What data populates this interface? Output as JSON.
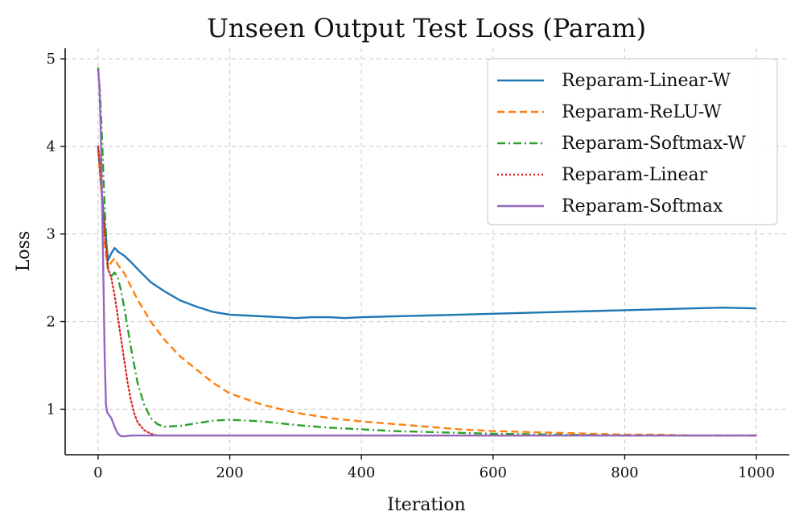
{
  "chart_data": {
    "type": "line",
    "title": "Unseen Output Test Loss (Param)",
    "xlabel": "Iteration",
    "ylabel": "Loss",
    "xlim": [
      -50,
      1050
    ],
    "ylim": [
      0.48,
      5.12
    ],
    "xticks": [
      0,
      200,
      400,
      600,
      800,
      1000
    ],
    "yticks": [
      1,
      2,
      3,
      4,
      5
    ],
    "grid": true,
    "legend_position": "top-right",
    "series": [
      {
        "name": "Reparam-Linear-W",
        "color": "#1f77b4",
        "style": "solid",
        "x": [
          0,
          5,
          10,
          15,
          20,
          25,
          30,
          40,
          50,
          60,
          80,
          100,
          125,
          150,
          175,
          200,
          225,
          250,
          275,
          300,
          325,
          350,
          375,
          400,
          450,
          500,
          550,
          600,
          650,
          700,
          750,
          800,
          850,
          900,
          950,
          1000
        ],
        "y": [
          4.0,
          3.5,
          3.1,
          2.7,
          2.78,
          2.84,
          2.8,
          2.75,
          2.68,
          2.6,
          2.45,
          2.35,
          2.24,
          2.17,
          2.11,
          2.08,
          2.07,
          2.06,
          2.05,
          2.04,
          2.05,
          2.05,
          2.04,
          2.05,
          2.06,
          2.07,
          2.08,
          2.09,
          2.1,
          2.11,
          2.12,
          2.13,
          2.14,
          2.15,
          2.16,
          2.15
        ]
      },
      {
        "name": "Reparam-ReLU-W",
        "color": "#ff7f0e",
        "style": "dashed",
        "x": [
          0,
          5,
          10,
          15,
          20,
          25,
          30,
          40,
          50,
          60,
          80,
          100,
          125,
          150,
          175,
          200,
          250,
          300,
          350,
          400,
          450,
          500,
          550,
          600,
          650,
          700,
          750,
          800,
          850,
          900,
          950,
          1000
        ],
        "y": [
          3.95,
          3.5,
          2.9,
          2.6,
          2.68,
          2.72,
          2.65,
          2.55,
          2.4,
          2.25,
          2.0,
          1.8,
          1.6,
          1.45,
          1.3,
          1.18,
          1.05,
          0.96,
          0.9,
          0.86,
          0.83,
          0.8,
          0.77,
          0.75,
          0.74,
          0.73,
          0.72,
          0.71,
          0.71,
          0.7,
          0.7,
          0.7
        ]
      },
      {
        "name": "Reparam-Softmax-W",
        "color": "#2ca02c",
        "style": "dashdot",
        "x": [
          0,
          3,
          6,
          10,
          15,
          20,
          25,
          30,
          35,
          40,
          50,
          60,
          70,
          80,
          90,
          100,
          125,
          150,
          175,
          200,
          250,
          300,
          350,
          400,
          450,
          500,
          600,
          700,
          800,
          900,
          1000
        ],
        "y": [
          4.9,
          4.6,
          4.1,
          3.3,
          2.6,
          2.52,
          2.56,
          2.5,
          2.35,
          2.15,
          1.7,
          1.3,
          1.05,
          0.9,
          0.83,
          0.8,
          0.81,
          0.84,
          0.87,
          0.88,
          0.86,
          0.82,
          0.79,
          0.77,
          0.75,
          0.74,
          0.72,
          0.71,
          0.7,
          0.7,
          0.7
        ]
      },
      {
        "name": "Reparam-Linear",
        "color": "#d62728",
        "style": "dotted",
        "x": [
          0,
          3,
          6,
          10,
          15,
          20,
          25,
          30,
          35,
          40,
          45,
          50,
          55,
          60,
          70,
          80,
          90,
          100,
          150,
          200,
          300,
          400,
          500,
          600,
          700,
          800,
          900,
          1000
        ],
        "y": [
          4.0,
          3.8,
          3.4,
          3.0,
          2.6,
          2.5,
          2.3,
          2.05,
          1.8,
          1.55,
          1.3,
          1.1,
          0.95,
          0.85,
          0.76,
          0.72,
          0.7,
          0.7,
          0.7,
          0.7,
          0.7,
          0.7,
          0.7,
          0.7,
          0.7,
          0.7,
          0.7,
          0.7
        ]
      },
      {
        "name": "Reparam-Softmax",
        "color": "#9467bd",
        "style": "solid",
        "x": [
          0,
          2,
          4,
          6,
          8,
          10,
          12,
          14,
          16,
          18,
          20,
          25,
          30,
          35,
          40,
          50,
          60,
          80,
          100,
          200,
          400,
          600,
          800,
          1000
        ],
        "y": [
          4.88,
          4.7,
          4.2,
          3.4,
          2.5,
          1.6,
          1.05,
          0.96,
          0.94,
          0.92,
          0.9,
          0.8,
          0.72,
          0.69,
          0.69,
          0.7,
          0.7,
          0.7,
          0.7,
          0.7,
          0.7,
          0.7,
          0.7,
          0.7
        ]
      }
    ]
  }
}
